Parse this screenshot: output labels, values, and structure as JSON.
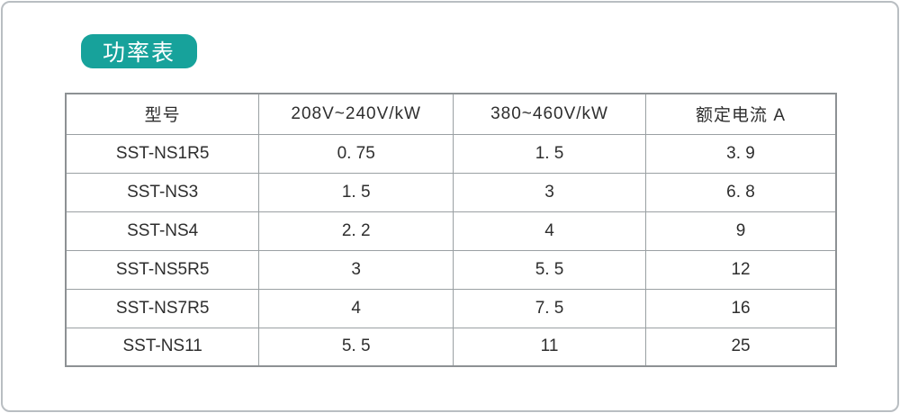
{
  "colors": {
    "accent": "#17a29b",
    "page_border": "#b9bec2",
    "table_outer_border": "#8d9194",
    "table_grid": "#9aa0a3",
    "text": "#2e2e2e"
  },
  "badge": {
    "label": "功率表"
  },
  "table": {
    "headers": [
      "型号",
      "208V~240V/kW",
      "380~460V/kW",
      "额定电流 A"
    ],
    "rows": [
      [
        "SST-NS1R5",
        "0. 75",
        "1. 5",
        "3. 9"
      ],
      [
        "SST-NS3",
        "1. 5",
        "3",
        "6. 8"
      ],
      [
        "SST-NS4",
        "2. 2",
        "4",
        "9"
      ],
      [
        "SST-NS5R5",
        "3",
        "5. 5",
        "12"
      ],
      [
        "SST-NS7R5",
        "4",
        "7. 5",
        "16"
      ],
      [
        "SST-NS11",
        "5. 5",
        "11",
        "25"
      ]
    ]
  },
  "chart_data": {
    "type": "table",
    "title": "功率表",
    "columns": [
      "型号",
      "208V~240V/kW",
      "380~460V/kW",
      "额定电流 A"
    ],
    "rows": [
      {
        "model": "SST-NS1R5",
        "kw_208_240": 0.75,
        "kw_380_460": 1.5,
        "rated_current_a": 3.9
      },
      {
        "model": "SST-NS3",
        "kw_208_240": 1.5,
        "kw_380_460": 3,
        "rated_current_a": 6.8
      },
      {
        "model": "SST-NS4",
        "kw_208_240": 2.2,
        "kw_380_460": 4,
        "rated_current_a": 9
      },
      {
        "model": "SST-NS5R5",
        "kw_208_240": 3,
        "kw_380_460": 5.5,
        "rated_current_a": 12
      },
      {
        "model": "SST-NS7R5",
        "kw_208_240": 4,
        "kw_380_460": 7.5,
        "rated_current_a": 16
      },
      {
        "model": "SST-NS11",
        "kw_208_240": 5.5,
        "kw_380_460": 11,
        "rated_current_a": 25
      }
    ]
  }
}
